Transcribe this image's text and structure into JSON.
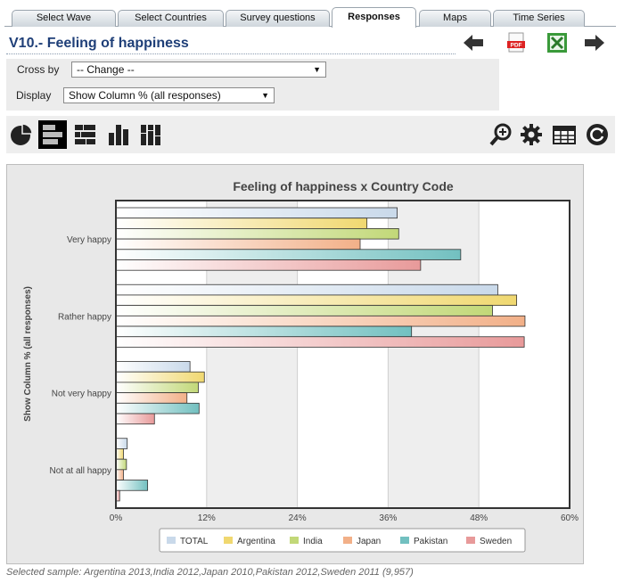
{
  "tabs": [
    {
      "label": "Select Wave",
      "active": false
    },
    {
      "label": "Select Countries",
      "active": false
    },
    {
      "label": "Survey questions",
      "active": false
    },
    {
      "label": "Responses",
      "active": true
    },
    {
      "label": "Maps",
      "active": false
    },
    {
      "label": "Time Series",
      "active": false
    }
  ],
  "page_title": "V10.- Feeling of happiness",
  "top_icons": [
    "back-arrow-icon",
    "pdf-icon",
    "excel-icon",
    "forward-arrow-icon"
  ],
  "controls": {
    "cross_by_label": "Cross by",
    "cross_by_value": "-- Change --",
    "display_label": "Display",
    "display_value": "Show Column % (all responses)"
  },
  "toolbar": {
    "left": [
      "pie-chart-icon",
      "horizontal-bar-icon",
      "stacked-horizontal-bar-icon",
      "vertical-bar-icon",
      "stacked-vertical-bar-icon"
    ],
    "active": "horizontal-bar-icon",
    "right": [
      "zoom-icon",
      "gear-icon",
      "table-icon",
      "refresh-icon"
    ]
  },
  "colors": {
    "TOTAL": "#c9d9ea",
    "Argentina": "#f0d870",
    "India": "#c2d878",
    "Japan": "#f2b088",
    "Pakistan": "#72c0c0",
    "Sweden": "#e89a9a"
  },
  "chart_data": {
    "type": "bar",
    "orientation": "horizontal",
    "title": "Feeling of happiness x Country Code",
    "ylabel": "Show Column % (all responses)",
    "categories": [
      "Very happy",
      "Rather happy",
      "Not very happy",
      "Not at all happy"
    ],
    "series": [
      {
        "name": "TOTAL",
        "values": [
          37.2,
          50.5,
          9.8,
          1.5
        ]
      },
      {
        "name": "Argentina",
        "values": [
          33.2,
          53.0,
          11.7,
          1.0
        ]
      },
      {
        "name": "India",
        "values": [
          37.4,
          49.8,
          10.9,
          1.4
        ]
      },
      {
        "name": "Japan",
        "values": [
          32.3,
          54.1,
          9.4,
          1.0
        ]
      },
      {
        "name": "Pakistan",
        "values": [
          45.6,
          39.1,
          11.0,
          4.2
        ]
      },
      {
        "name": "Sweden",
        "values": [
          40.3,
          54.0,
          5.1,
          0.5
        ]
      }
    ],
    "xlim": [
      0,
      60
    ],
    "xticks": [
      "0%",
      "12%",
      "24%",
      "36%",
      "48%",
      "60%"
    ],
    "legend_position": "bottom",
    "grid": "alternating vertical bands"
  },
  "footer": "Selected sample: Argentina 2013,India 2012,Japan 2010,Pakistan 2012,Sweden 2011 (9,957)"
}
